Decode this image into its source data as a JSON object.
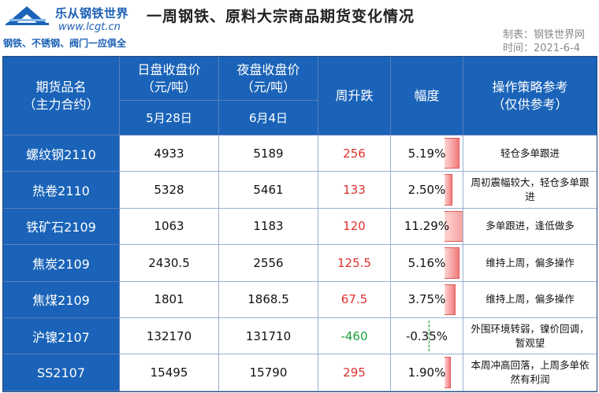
{
  "header": {
    "brand": "乐从钢铁世界",
    "site": "www.lcgt.cn",
    "slogan": "钢铁、不锈钢、阀门一应俱全",
    "title": "一周钢铁、原料大宗商品期货变化情况",
    "maker": "制表：钢铁世界网",
    "time": "时间：2021-6-4"
  },
  "table": {
    "col_name": "期货品名\n（主力合约）",
    "col_day": "日盘收盘价\n（元/吨）",
    "col_night": "夜盘收盘价\n（元/吨）",
    "col_day_date": "5月28日",
    "col_night_date": "6月4日",
    "col_change": "周升跌",
    "col_pct": "幅度",
    "col_strategy": "操作策略参考\n（仅供参考）",
    "rows": [
      {
        "name": "螺纹钢2110",
        "day": "4933",
        "night": "5189",
        "change": "256",
        "pct": "5.19%",
        "pct_value": 5.19,
        "strategy": "轻仓多单跟进",
        "dir": "up"
      },
      {
        "name": "热卷2110",
        "day": "5328",
        "night": "5461",
        "change": "133",
        "pct": "2.50%",
        "pct_value": 2.5,
        "strategy": "周初震幅较大，轻仓多单跟进",
        "dir": "up"
      },
      {
        "name": "铁矿石2109",
        "day": "1063",
        "night": "1183",
        "change": "120",
        "pct": "11.29%",
        "pct_value": 11.29,
        "strategy": "多单跟进，逢低做多",
        "dir": "up"
      },
      {
        "name": "焦炭2109",
        "day": "2430.5",
        "night": "2556",
        "change": "125.5",
        "pct": "5.16%",
        "pct_value": 5.16,
        "strategy": "维持上周，偏多操作",
        "dir": "up"
      },
      {
        "name": "焦煤2109",
        "day": "1801",
        "night": "1868.5",
        "change": "67.5",
        "pct": "3.75%",
        "pct_value": 3.75,
        "strategy": "维持上周，偏多操作",
        "dir": "up"
      },
      {
        "name": "沪镍2107",
        "day": "132170",
        "night": "131710",
        "change": "-460",
        "pct": "-0.35%",
        "pct_value": -0.35,
        "strategy": "外围环境转弱，镍价回调，暂观望",
        "dir": "down"
      },
      {
        "name": "SS2107",
        "day": "15495",
        "night": "15790",
        "change": "295",
        "pct": "1.90%",
        "pct_value": 1.9,
        "strategy": "本周冲高回落，上周多单依然有利润",
        "dir": "up"
      }
    ]
  },
  "colors": {
    "header_bg": "#1a63b8",
    "up": "#e0312f",
    "down": "#1a9e3a"
  }
}
